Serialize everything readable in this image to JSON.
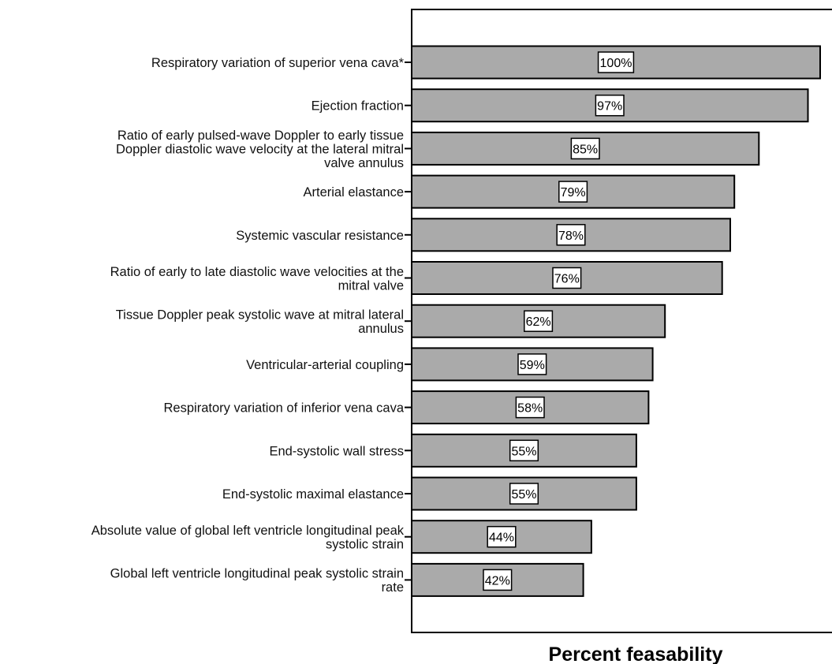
{
  "chart_data": {
    "type": "bar",
    "orientation": "horizontal",
    "title": "",
    "xlabel": "Percent feasability",
    "ylabel": "",
    "xlim": [
      0,
      100
    ],
    "grid": false,
    "legend": "none",
    "bar_color": "#aaaaaa",
    "categories": [
      [
        "Respiratory variation of superior vena cava*"
      ],
      [
        "Ejection fraction"
      ],
      [
        "Ratio of early pulsed-wave Doppler to early tissue",
        "Doppler diastolic wave velocity at the lateral mitral",
        "valve annulus"
      ],
      [
        "Arterial elastance"
      ],
      [
        "Systemic vascular resistance"
      ],
      [
        "Ratio of early to late diastolic wave velocities at the",
        "mitral valve"
      ],
      [
        "Tissue Doppler peak systolic wave at mitral lateral",
        "annulus"
      ],
      [
        "Ventricular-arterial coupling"
      ],
      [
        "Respiratory variation of inferior vena cava"
      ],
      [
        "End-systolic wall stress"
      ],
      [
        "End-systolic maximal elastance"
      ],
      [
        "Absolute value of global left ventricle longitudinal peak",
        "systolic strain"
      ],
      [
        "Global left ventricle longitudinal peak systolic strain",
        "rate"
      ]
    ],
    "values": [
      100,
      97,
      85,
      79,
      78,
      76,
      62,
      59,
      58,
      55,
      55,
      44,
      42
    ],
    "value_labels": [
      "100%",
      "97%",
      "85%",
      "79%",
      "78%",
      "76%",
      "62%",
      "59%",
      "58%",
      "55%",
      "55%",
      "44%",
      "42%"
    ]
  }
}
